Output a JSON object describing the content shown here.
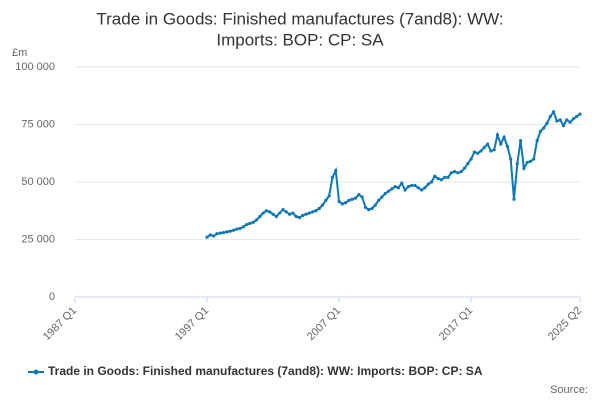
{
  "chart_data": {
    "type": "line",
    "title": [
      "Trade in Goods: Finished manufactures (7and8): WW:",
      "Imports: BOP: CP: SA"
    ],
    "y_unit": "£m",
    "source": "Source:",
    "categories": [
      "1987 Q1",
      null,
      null,
      null,
      null,
      null,
      null,
      null,
      null,
      null,
      null,
      null,
      null,
      null,
      null,
      null,
      null,
      null,
      null,
      null,
      null,
      null,
      null,
      null,
      null,
      null,
      null,
      null,
      null,
      null,
      null,
      null,
      null,
      null,
      null,
      null,
      null,
      null,
      null,
      null,
      "1997 Q1",
      null,
      null,
      null,
      null,
      null,
      null,
      null,
      null,
      null,
      null,
      null,
      null,
      null,
      null,
      null,
      null,
      null,
      null,
      null,
      null,
      null,
      null,
      null,
      null,
      null,
      null,
      null,
      null,
      null,
      null,
      null,
      null,
      null,
      null,
      null,
      null,
      null,
      null,
      null,
      "2007 Q1",
      null,
      null,
      null,
      null,
      null,
      null,
      null,
      null,
      null,
      null,
      null,
      null,
      null,
      null,
      null,
      null,
      null,
      null,
      null,
      null,
      null,
      null,
      null,
      null,
      null,
      null,
      null,
      null,
      null,
      null,
      null,
      null,
      null,
      null,
      null,
      null,
      null,
      null,
      null,
      "2017 Q1",
      null,
      null,
      null,
      null,
      null,
      null,
      null,
      null,
      null,
      null,
      null,
      null,
      null,
      null,
      null,
      null,
      null,
      null,
      null,
      null,
      null,
      null,
      null,
      null,
      null,
      null,
      null,
      null,
      null,
      null,
      null,
      null,
      "2025 Q2"
    ],
    "series": [
      {
        "name": "Trade in Goods: Finished manufactures (7and8): WW: Imports: BOP: CP: SA",
        "color": "#0f77b5",
        "values": [
          null,
          null,
          null,
          null,
          null,
          null,
          null,
          null,
          null,
          null,
          null,
          null,
          null,
          null,
          null,
          null,
          null,
          null,
          null,
          null,
          null,
          null,
          null,
          null,
          null,
          null,
          null,
          null,
          null,
          null,
          null,
          null,
          null,
          null,
          null,
          null,
          null,
          null,
          null,
          null,
          26000,
          27000,
          26500,
          27500,
          27800,
          28000,
          28300,
          28600,
          29000,
          29500,
          29800,
          30500,
          31500,
          32000,
          32500,
          33500,
          35000,
          36500,
          37500,
          37000,
          36000,
          35000,
          36500,
          38000,
          37000,
          36000,
          36500,
          35000,
          34500,
          35500,
          36000,
          36500,
          37000,
          37500,
          38500,
          40000,
          42000,
          44000,
          52000,
          55000,
          41500,
          40500,
          41000,
          42000,
          42500,
          43000,
          44500,
          43500,
          39000,
          38000,
          38500,
          40000,
          42000,
          43500,
          45000,
          46000,
          47000,
          48000,
          47500,
          49500,
          46500,
          48000,
          48500,
          48500,
          47500,
          46500,
          47500,
          49000,
          50000,
          52500,
          51500,
          51000,
          52000,
          52000,
          54000,
          54500,
          54000,
          54500,
          56000,
          58000,
          60000,
          63000,
          62500,
          63500,
          65000,
          66500,
          63500,
          64000,
          70500,
          66500,
          69500,
          65500,
          60000,
          42500,
          58000,
          68000,
          56000,
          58500,
          59000,
          60000,
          68000,
          72000,
          73500,
          75500,
          78500,
          80500,
          76500,
          77000,
          74500,
          77000,
          76000,
          77500,
          78500,
          79500
        ]
      }
    ],
    "ylim": [
      0,
      100000
    ],
    "yticks": [
      0,
      {
        "value": 25000,
        "label": "25 000"
      },
      {
        "value": 50000,
        "label": "50 000"
      },
      {
        "value": 75000,
        "label": "75 000"
      },
      {
        "value": 100000,
        "label": "100 000"
      }
    ],
    "grid": true
  }
}
